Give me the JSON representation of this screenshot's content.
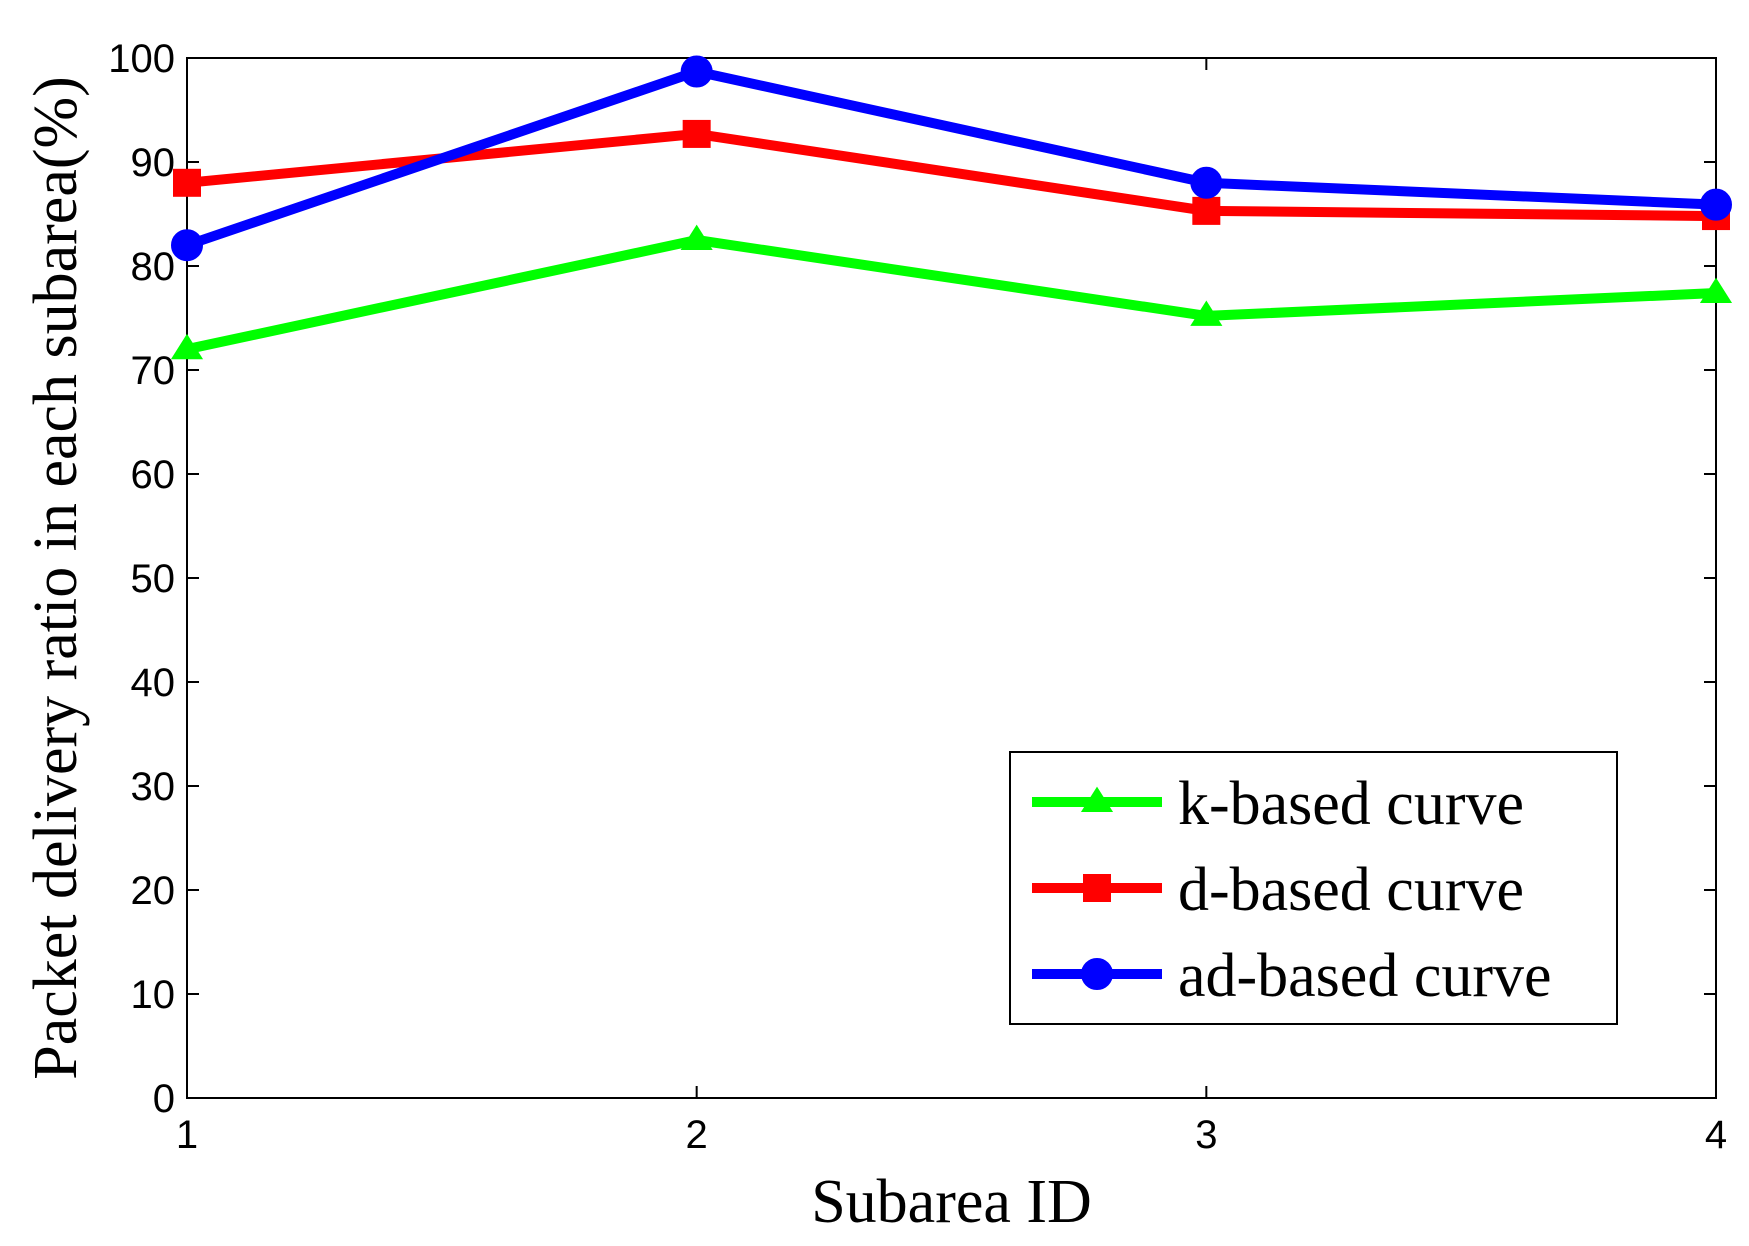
{
  "chart_data": {
    "type": "line",
    "title": "",
    "xlabel": "Subarea ID",
    "ylabel": "Packet delivery ratio in each subarea(%)",
    "x": [
      1,
      2,
      3,
      4
    ],
    "xticks": [
      "1",
      "2",
      "3",
      "4"
    ],
    "xlim": [
      1,
      4
    ],
    "yticks": [
      "0",
      "10",
      "20",
      "30",
      "40",
      "50",
      "60",
      "70",
      "80",
      "90",
      "100"
    ],
    "ylim": [
      0,
      100
    ],
    "grid": false,
    "legend_position": "bottom-right",
    "series": [
      {
        "name": "k-based curve",
        "color": "#00ff00",
        "marker": "triangle",
        "values": [
          72,
          82.5,
          75.2,
          77.4
        ]
      },
      {
        "name": "d-based curve",
        "color": "#ff0000",
        "marker": "square",
        "values": [
          88,
          92.7,
          85.3,
          84.8
        ]
      },
      {
        "name": "ad-based curve",
        "color": "#0000ff",
        "marker": "circle",
        "values": [
          82,
          98.7,
          88,
          85.9
        ]
      }
    ]
  }
}
